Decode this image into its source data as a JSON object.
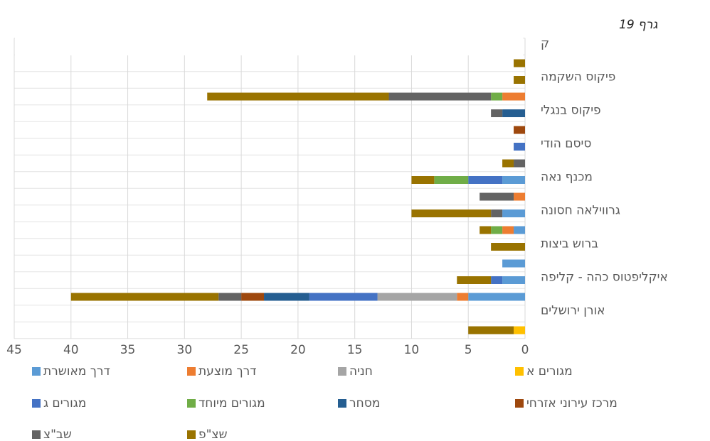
{
  "caption": "גרף 19",
  "chart_data": {
    "type": "stacked_barh",
    "categories": [
      null,
      "אורן ירושלים",
      null,
      "איקליפטוס כהה - קליפה",
      null,
      "ברוש ביצות",
      null,
      "גרווילאה חסונה",
      null,
      "מכנף נאה",
      null,
      "סיסם הודי",
      null,
      "פיקוס בנגלי",
      null,
      "פיקוס השקמה",
      null,
      "ק"
    ],
    "series": [
      {
        "name": "דרך מאושרת",
        "color": "#5b9bd5",
        "values": [
          0,
          0,
          5,
          2,
          2,
          0,
          1,
          2,
          0,
          2,
          0,
          0,
          0,
          0,
          0,
          0,
          0,
          0
        ]
      },
      {
        "name": "דרך מוצעת",
        "color": "#ed7d31",
        "values": [
          0,
          0,
          1,
          0,
          0,
          0,
          1,
          0,
          1,
          0,
          0,
          0,
          0,
          0,
          2,
          0,
          0,
          0
        ]
      },
      {
        "name": "חניה",
        "color": "#a5a5a5",
        "values": [
          0,
          0,
          7,
          0,
          0,
          0,
          0,
          0,
          0,
          0,
          0,
          0,
          0,
          0,
          0,
          0,
          0,
          0
        ]
      },
      {
        "name": "מגורים א",
        "color": "#ffc000",
        "values": [
          1,
          0,
          0,
          0,
          0,
          0,
          0,
          0,
          0,
          0,
          0,
          0,
          0,
          0,
          0,
          0,
          0,
          0
        ]
      },
      {
        "name": "מגורים ג",
        "color": "#4472c4",
        "values": [
          0,
          0,
          6,
          1,
          0,
          0,
          0,
          0,
          0,
          3,
          0,
          1,
          0,
          0,
          0,
          0,
          0,
          0
        ]
      },
      {
        "name": "מגורים מיוחד",
        "color": "#70ad47",
        "values": [
          0,
          0,
          0,
          0,
          0,
          0,
          1,
          0,
          0,
          3,
          0,
          0,
          0,
          0,
          1,
          0,
          0,
          0
        ]
      },
      {
        "name": "מסחר",
        "color": "#255e91",
        "values": [
          0,
          0,
          4,
          0,
          0,
          0,
          0,
          0,
          0,
          0,
          0,
          0,
          0,
          2,
          0,
          0,
          0,
          0
        ]
      },
      {
        "name": "מרכז עירוני אזרחי",
        "color": "#9e480e",
        "values": [
          0,
          0,
          2,
          0,
          0,
          0,
          0,
          0,
          0,
          0,
          0,
          0,
          1,
          0,
          0,
          0,
          0,
          0
        ]
      },
      {
        "name": "שב\"צ",
        "color": "#636363",
        "values": [
          0,
          0,
          2,
          0,
          0,
          0,
          0,
          1,
          3,
          0,
          1,
          0,
          0,
          1,
          9,
          0,
          0,
          0
        ]
      },
      {
        "name": "שצ\"פ",
        "color": "#997300",
        "values": [
          4,
          0,
          13,
          3,
          0,
          3,
          1,
          7,
          0,
          2,
          1,
          0,
          0,
          0,
          16,
          1,
          1,
          0
        ]
      }
    ],
    "xlim": [
      0,
      45
    ],
    "xticks": [
      0,
      5,
      10,
      15,
      20,
      25,
      30,
      35,
      40,
      45
    ],
    "x_reversed": true,
    "grid": true
  }
}
